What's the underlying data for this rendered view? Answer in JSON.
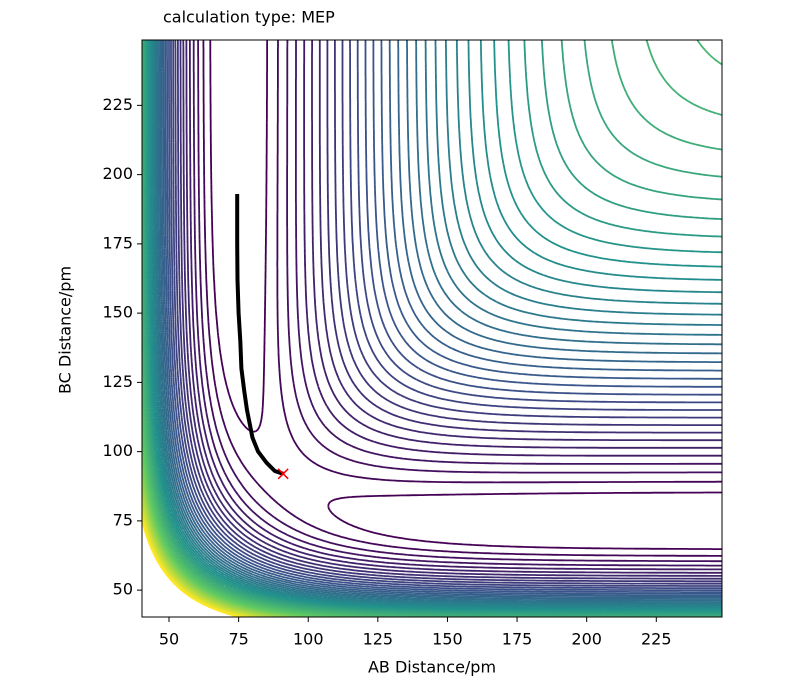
{
  "chart_data": {
    "type": "contour",
    "title": "calculation type: MEP",
    "xlabel": "AB Distance/pm",
    "ylabel": "BC Distance/pm",
    "xlim": [
      40.3,
      248.6
    ],
    "ylim": [
      40.3,
      248.6
    ],
    "xticks": [
      50,
      75,
      100,
      125,
      150,
      175,
      200,
      225
    ],
    "yticks": [
      50,
      75,
      100,
      125,
      150,
      175,
      200,
      225
    ],
    "path": {
      "color": "#000000",
      "x": [
        74.5,
        74.5,
        74.6,
        75,
        75.6,
        76,
        77,
        78,
        80,
        82,
        85,
        88,
        91
      ],
      "y": [
        193,
        175,
        162,
        150,
        140,
        130,
        122,
        115,
        105,
        100,
        96,
        93,
        92
      ]
    },
    "marker": {
      "color": "#ff0000",
      "x": 91,
      "y": 92
    }
  }
}
